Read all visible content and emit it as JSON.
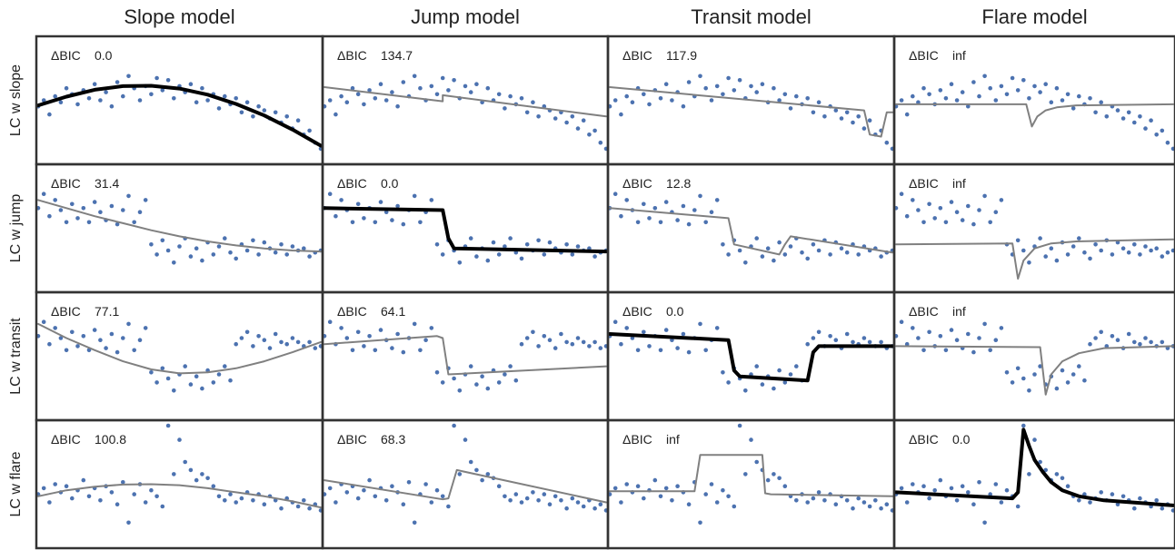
{
  "chart_data": {
    "type": "scatter",
    "columns": [
      "Slope model",
      "Jump model",
      "Transit model",
      "Flare model"
    ],
    "rows": [
      "LC w slope",
      "LC w jump",
      "LC w transit",
      "LC w flare"
    ],
    "bic_label": "ΔBIC",
    "bic": [
      [
        "0.0",
        "134.7",
        "117.9",
        "inf"
      ],
      [
        "31.4",
        "0.0",
        "12.8",
        "inf"
      ],
      [
        "77.1",
        "64.1",
        "0.0",
        "inf"
      ],
      [
        "100.8",
        "68.3",
        "inf",
        "0.0"
      ]
    ],
    "best_fit": [
      0,
      1,
      2,
      3
    ],
    "colors": {
      "points": "#4c72b0",
      "fit": "#808080",
      "best_fit": "#000000",
      "frame": "#333333"
    },
    "x_range": [
      0,
      1
    ],
    "y_range": [
      -2.6,
      3.2
    ],
    "light_curves": [
      {
        "name": "LC w slope",
        "x": [
          0.0,
          0.02,
          0.04,
          0.06,
          0.08,
          0.1,
          0.12,
          0.14,
          0.16,
          0.18,
          0.2,
          0.22,
          0.24,
          0.26,
          0.28,
          0.3,
          0.32,
          0.34,
          0.36,
          0.38,
          0.4,
          0.42,
          0.44,
          0.46,
          0.48,
          0.5,
          0.52,
          0.54,
          0.56,
          0.58,
          0.6,
          0.62,
          0.64,
          0.66,
          0.68,
          0.7,
          0.72,
          0.74,
          0.76,
          0.78,
          0.8,
          0.82,
          0.84,
          0.86,
          0.88,
          0.9,
          0.92,
          0.94,
          0.96,
          0.98,
          1.0
        ],
        "y": [
          0.0,
          0.3,
          -0.4,
          0.5,
          0.2,
          0.9,
          0.6,
          0.1,
          0.8,
          0.4,
          1.1,
          0.3,
          0.7,
          0.0,
          1.2,
          0.5,
          1.5,
          0.9,
          0.3,
          1.0,
          0.6,
          1.4,
          0.8,
          1.3,
          0.4,
          1.0,
          0.7,
          1.1,
          0.2,
          0.9,
          0.3,
          0.6,
          -0.1,
          0.5,
          0.1,
          0.4,
          -0.3,
          0.2,
          -0.5,
          0.0,
          -0.2,
          -0.6,
          -0.3,
          -0.8,
          -0.5,
          -1.1,
          -0.7,
          -1.4,
          -1.2,
          -1.8,
          -2.1
        ]
      },
      {
        "name": "LC w jump",
        "x": [
          0.0,
          0.02,
          0.04,
          0.06,
          0.08,
          0.1,
          0.12,
          0.14,
          0.16,
          0.18,
          0.2,
          0.22,
          0.24,
          0.26,
          0.28,
          0.3,
          0.32,
          0.34,
          0.36,
          0.38,
          0.4,
          0.42,
          0.44,
          0.46,
          0.48,
          0.5,
          0.52,
          0.54,
          0.56,
          0.58,
          0.6,
          0.62,
          0.64,
          0.66,
          0.68,
          0.7,
          0.72,
          0.74,
          0.76,
          0.78,
          0.8,
          0.82,
          0.84,
          0.86,
          0.88,
          0.9,
          0.92,
          0.94,
          0.96,
          0.98,
          1.0
        ],
        "y": [
          1.3,
          2.0,
          0.9,
          1.7,
          1.2,
          0.6,
          1.5,
          0.8,
          1.3,
          0.6,
          1.6,
          1.1,
          0.7,
          1.4,
          0.5,
          1.2,
          1.9,
          0.6,
          1.1,
          1.7,
          -0.5,
          -1.0,
          -0.3,
          -0.8,
          -1.4,
          -0.6,
          -0.2,
          -1.1,
          -0.7,
          -1.3,
          -0.4,
          -1.0,
          -0.6,
          -0.2,
          -0.9,
          -1.2,
          -0.5,
          -0.8,
          -0.3,
          -1.0,
          -0.4,
          -0.7,
          -0.9,
          -0.5,
          -1.0,
          -0.6,
          -0.8,
          -0.7,
          -1.1,
          -0.9,
          -0.8
        ]
      },
      {
        "name": "LC w transit",
        "x": [
          0.0,
          0.02,
          0.04,
          0.06,
          0.08,
          0.1,
          0.12,
          0.14,
          0.16,
          0.18,
          0.2,
          0.22,
          0.24,
          0.26,
          0.28,
          0.3,
          0.32,
          0.34,
          0.36,
          0.38,
          0.4,
          0.42,
          0.44,
          0.46,
          0.48,
          0.5,
          0.52,
          0.54,
          0.56,
          0.58,
          0.6,
          0.62,
          0.64,
          0.66,
          0.68,
          0.7,
          0.72,
          0.74,
          0.76,
          0.78,
          0.8,
          0.82,
          0.84,
          0.86,
          0.88,
          0.9,
          0.92,
          0.94,
          0.96,
          0.98,
          1.0
        ],
        "y": [
          1.3,
          2.0,
          0.9,
          1.7,
          1.2,
          0.6,
          1.5,
          0.8,
          1.3,
          0.6,
          1.6,
          1.1,
          0.7,
          1.4,
          0.5,
          1.2,
          1.9,
          0.6,
          1.1,
          1.7,
          -0.5,
          -1.0,
          -0.3,
          -0.8,
          -1.4,
          -0.6,
          -0.2,
          -1.1,
          -0.7,
          -1.3,
          -0.4,
          -1.0,
          -0.6,
          -0.2,
          -0.9,
          0.9,
          1.2,
          1.5,
          0.8,
          1.3,
          1.1,
          0.7,
          1.4,
          1.0,
          0.9,
          1.2,
          1.0,
          0.8,
          1.0,
          0.7,
          0.8
        ]
      },
      {
        "name": "LC w flare",
        "x": [
          0.0,
          0.02,
          0.04,
          0.06,
          0.08,
          0.1,
          0.12,
          0.14,
          0.16,
          0.18,
          0.2,
          0.22,
          0.24,
          0.26,
          0.28,
          0.3,
          0.32,
          0.34,
          0.36,
          0.38,
          0.4,
          0.42,
          0.44,
          0.46,
          0.48,
          0.5,
          0.52,
          0.54,
          0.56,
          0.58,
          0.6,
          0.62,
          0.64,
          0.66,
          0.68,
          0.7,
          0.72,
          0.74,
          0.76,
          0.78,
          0.8,
          0.82,
          0.84,
          0.86,
          0.88,
          0.9,
          0.92,
          0.94,
          0.96,
          0.98,
          1.0
        ],
        "y": [
          -0.2,
          0.1,
          -0.6,
          0.3,
          -0.1,
          0.2,
          -0.4,
          0.0,
          0.5,
          -0.3,
          0.1,
          -0.5,
          0.2,
          -0.1,
          -0.7,
          0.4,
          -1.6,
          -0.2,
          0.3,
          -0.6,
          0.0,
          -0.3,
          -0.8,
          3.2,
          0.8,
          2.5,
          1.4,
          1.0,
          0.5,
          0.8,
          0.6,
          0.2,
          -0.3,
          -0.5,
          -0.2,
          -0.6,
          -0.4,
          -0.1,
          -0.5,
          -0.2,
          -0.7,
          -0.3,
          -0.5,
          -0.9,
          -0.4,
          -0.6,
          -0.8,
          -0.5,
          -0.9,
          -0.7,
          -1.0
        ]
      }
    ],
    "models": [
      [
        {
          "x": [
            0,
            0.1,
            0.2,
            0.3,
            0.4,
            0.5,
            0.6,
            0.7,
            0.8,
            0.9,
            1.0
          ],
          "y": [
            0.05,
            0.48,
            0.82,
            1.0,
            1.02,
            0.88,
            0.58,
            0.12,
            -0.45,
            -1.15,
            -1.95
          ]
        },
        {
          "x": [
            0,
            0.42,
            0.42,
            1.0
          ],
          "y": [
            0.95,
            0.25,
            0.55,
            -0.5
          ]
        },
        {
          "x": [
            0,
            0.9,
            0.92,
            0.96,
            0.98,
            1.0
          ],
          "y": [
            0.95,
            -0.2,
            -1.4,
            -1.5,
            -0.3,
            -0.3
          ]
        },
        {
          "x": [
            0,
            0.47,
            0.49,
            0.51,
            0.54,
            0.58,
            0.65,
            1.0
          ],
          "y": [
            0.1,
            0.1,
            -1.0,
            -0.5,
            -0.2,
            -0.05,
            0.05,
            0.1
          ]
        }
      ],
      [
        {
          "x": [
            0,
            0.1,
            0.2,
            0.3,
            0.4,
            0.5,
            0.6,
            0.7,
            0.8,
            0.9,
            1.0
          ],
          "y": [
            1.7,
            1.3,
            0.9,
            0.55,
            0.2,
            -0.1,
            -0.35,
            -0.55,
            -0.7,
            -0.8,
            -0.85
          ]
        },
        {
          "x": [
            0,
            0.42,
            0.44,
            0.46,
            1.0
          ],
          "y": [
            1.3,
            1.2,
            -0.2,
            -0.7,
            -0.85
          ]
        },
        {
          "x": [
            0,
            0.42,
            0.44,
            0.6,
            0.62,
            0.64,
            1.0
          ],
          "y": [
            1.3,
            0.8,
            -0.5,
            -1.0,
            -0.5,
            -0.1,
            -0.9
          ]
        },
        {
          "x": [
            0,
            0.42,
            0.44,
            0.46,
            0.5,
            0.56,
            0.65,
            1.0
          ],
          "y": [
            -0.5,
            -0.45,
            -2.2,
            -1.3,
            -0.7,
            -0.45,
            -0.35,
            -0.25
          ]
        }
      ],
      [
        {
          "x": [
            0,
            0.1,
            0.2,
            0.3,
            0.4,
            0.5,
            0.6,
            0.7,
            0.8,
            0.9,
            1.0
          ],
          "y": [
            1.9,
            1.2,
            0.6,
            0.05,
            -0.35,
            -0.55,
            -0.5,
            -0.3,
            0.05,
            0.5,
            1.0
          ]
        },
        {
          "x": [
            0,
            0.4,
            0.42,
            0.44,
            1.0
          ],
          "y": [
            0.9,
            1.3,
            1.2,
            -0.6,
            -0.2
          ]
        },
        {
          "x": [
            0,
            0.42,
            0.44,
            0.46,
            0.7,
            0.72,
            0.74,
            1.0
          ],
          "y": [
            1.4,
            1.1,
            -0.4,
            -0.7,
            -0.9,
            0.5,
            0.8,
            0.8
          ]
        },
        {
          "x": [
            0,
            0.52,
            0.54,
            0.56,
            0.6,
            0.66,
            0.75,
            1.0
          ],
          "y": [
            0.8,
            0.75,
            -1.6,
            -0.6,
            0.05,
            0.45,
            0.7,
            0.8
          ]
        }
      ],
      [
        {
          "x": [
            0,
            0.1,
            0.2,
            0.3,
            0.4,
            0.5,
            0.6,
            0.7,
            0.8,
            0.9,
            1.0
          ],
          "y": [
            -0.3,
            0.0,
            0.18,
            0.28,
            0.3,
            0.25,
            0.1,
            -0.1,
            -0.3,
            -0.55,
            -0.85
          ]
        },
        {
          "x": [
            0,
            0.42,
            0.44,
            0.47,
            1.0
          ],
          "y": [
            0.5,
            -0.45,
            -0.4,
            1.0,
            -0.6
          ]
        },
        {
          "x": [
            0,
            0.3,
            0.32,
            0.54,
            0.55,
            0.57,
            1.0
          ],
          "y": [
            -0.05,
            -0.05,
            1.75,
            1.75,
            -0.15,
            -0.2,
            -0.3
          ]
        },
        {
          "x": [
            0,
            0.42,
            0.44,
            0.46,
            0.48,
            0.5,
            0.53,
            0.56,
            0.6,
            0.66,
            0.75,
            0.85,
            1.0
          ],
          "y": [
            -0.1,
            -0.4,
            -0.1,
            3.0,
            2.2,
            1.5,
            0.9,
            0.4,
            0.0,
            -0.3,
            -0.5,
            -0.6,
            -0.75
          ]
        }
      ]
    ]
  }
}
